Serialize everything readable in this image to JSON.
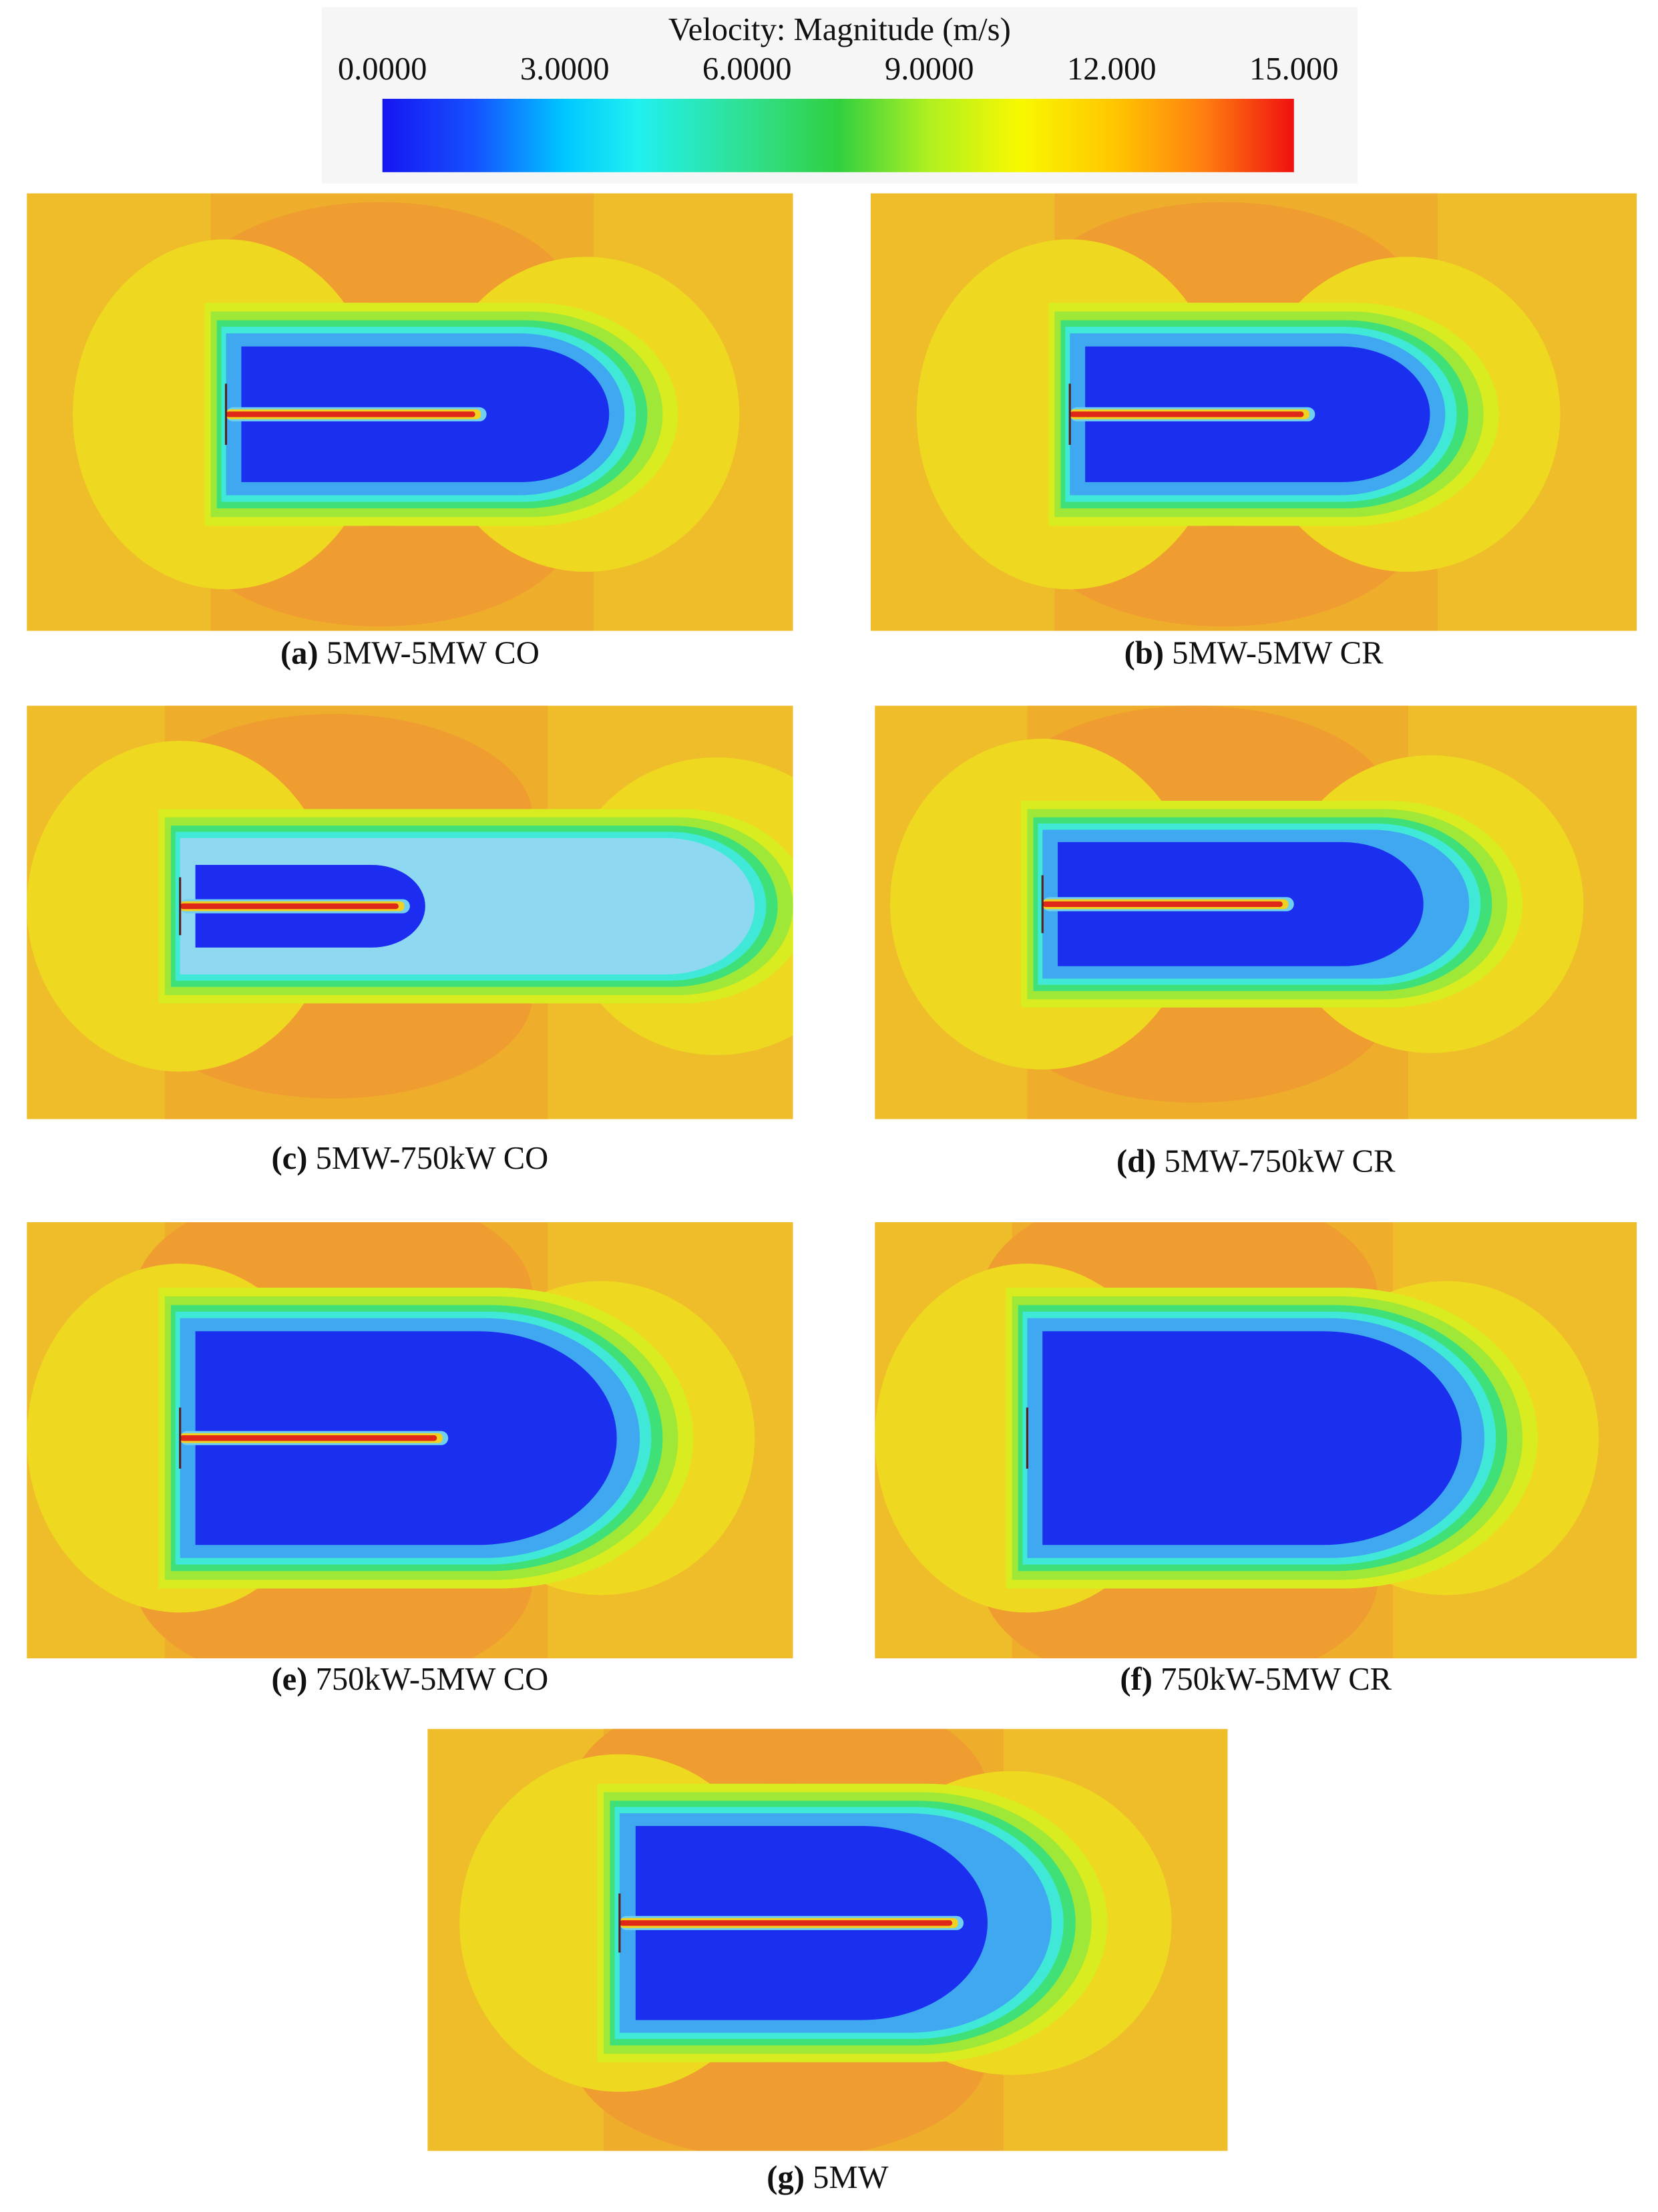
{
  "colorbar": {
    "title": "Velocity: Magnitude (m/s)",
    "ticks": [
      "0.0000",
      "3.0000",
      "6.0000",
      "9.0000",
      "12.000",
      "15.000"
    ]
  },
  "panels": [
    {
      "label": "(a)",
      "caption": "5MW-5MW CO"
    },
    {
      "label": "(b)",
      "caption": "5MW-5MW CR"
    },
    {
      "label": "(c)",
      "caption": "5MW-750kW CO"
    },
    {
      "label": "(d)",
      "caption": "5MW-750kW CR"
    },
    {
      "label": "(e)",
      "caption": "750kW-5MW CO"
    },
    {
      "label": "(f)",
      "caption": "750kW-5MW CR"
    },
    {
      "label": "(g)",
      "caption": "5MW"
    }
  ]
}
